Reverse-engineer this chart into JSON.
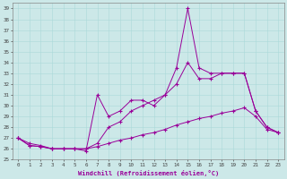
{
  "xlabel": "Windchill (Refroidissement éolien,°C)",
  "background_color": "#cce8e8",
  "line_color": "#990099",
  "xlim": [
    -0.5,
    23.5
  ],
  "ylim": [
    25,
    39.5
  ],
  "yticks": [
    25,
    26,
    27,
    28,
    29,
    30,
    31,
    32,
    33,
    34,
    35,
    36,
    37,
    38,
    39
  ],
  "xticks": [
    0,
    1,
    2,
    3,
    4,
    5,
    6,
    7,
    8,
    9,
    10,
    11,
    12,
    13,
    14,
    15,
    16,
    17,
    18,
    19,
    20,
    21,
    22,
    23
  ],
  "hours": [
    0,
    1,
    2,
    3,
    4,
    5,
    6,
    7,
    8,
    9,
    10,
    11,
    12,
    13,
    14,
    15,
    16,
    17,
    18,
    19,
    20,
    21,
    22,
    23
  ],
  "line_flat": [
    27,
    26.5,
    26.3,
    26.0,
    26.0,
    26.0,
    26.0,
    26.2,
    26.5,
    26.8,
    27.0,
    27.3,
    27.5,
    27.8,
    28.2,
    28.5,
    28.8,
    29.0,
    29.3,
    29.5,
    29.8,
    29.0,
    27.8,
    27.5
  ],
  "line_mid": [
    27,
    26.3,
    26.2,
    26.0,
    26.0,
    26.0,
    26.0,
    26.5,
    28.0,
    28.5,
    29.5,
    30.0,
    30.5,
    31.0,
    32.0,
    34.0,
    32.5,
    32.5,
    33.0,
    33.0,
    33.0,
    29.5,
    28.0,
    27.5
  ],
  "line_spike": [
    27,
    26.3,
    26.2,
    26.0,
    26.0,
    26.0,
    25.8,
    31.0,
    29.0,
    29.5,
    30.5,
    30.5,
    30.0,
    31.0,
    33.5,
    39.0,
    33.5,
    33.0,
    33.0,
    33.0,
    33.0,
    29.5,
    28.0,
    27.5
  ]
}
